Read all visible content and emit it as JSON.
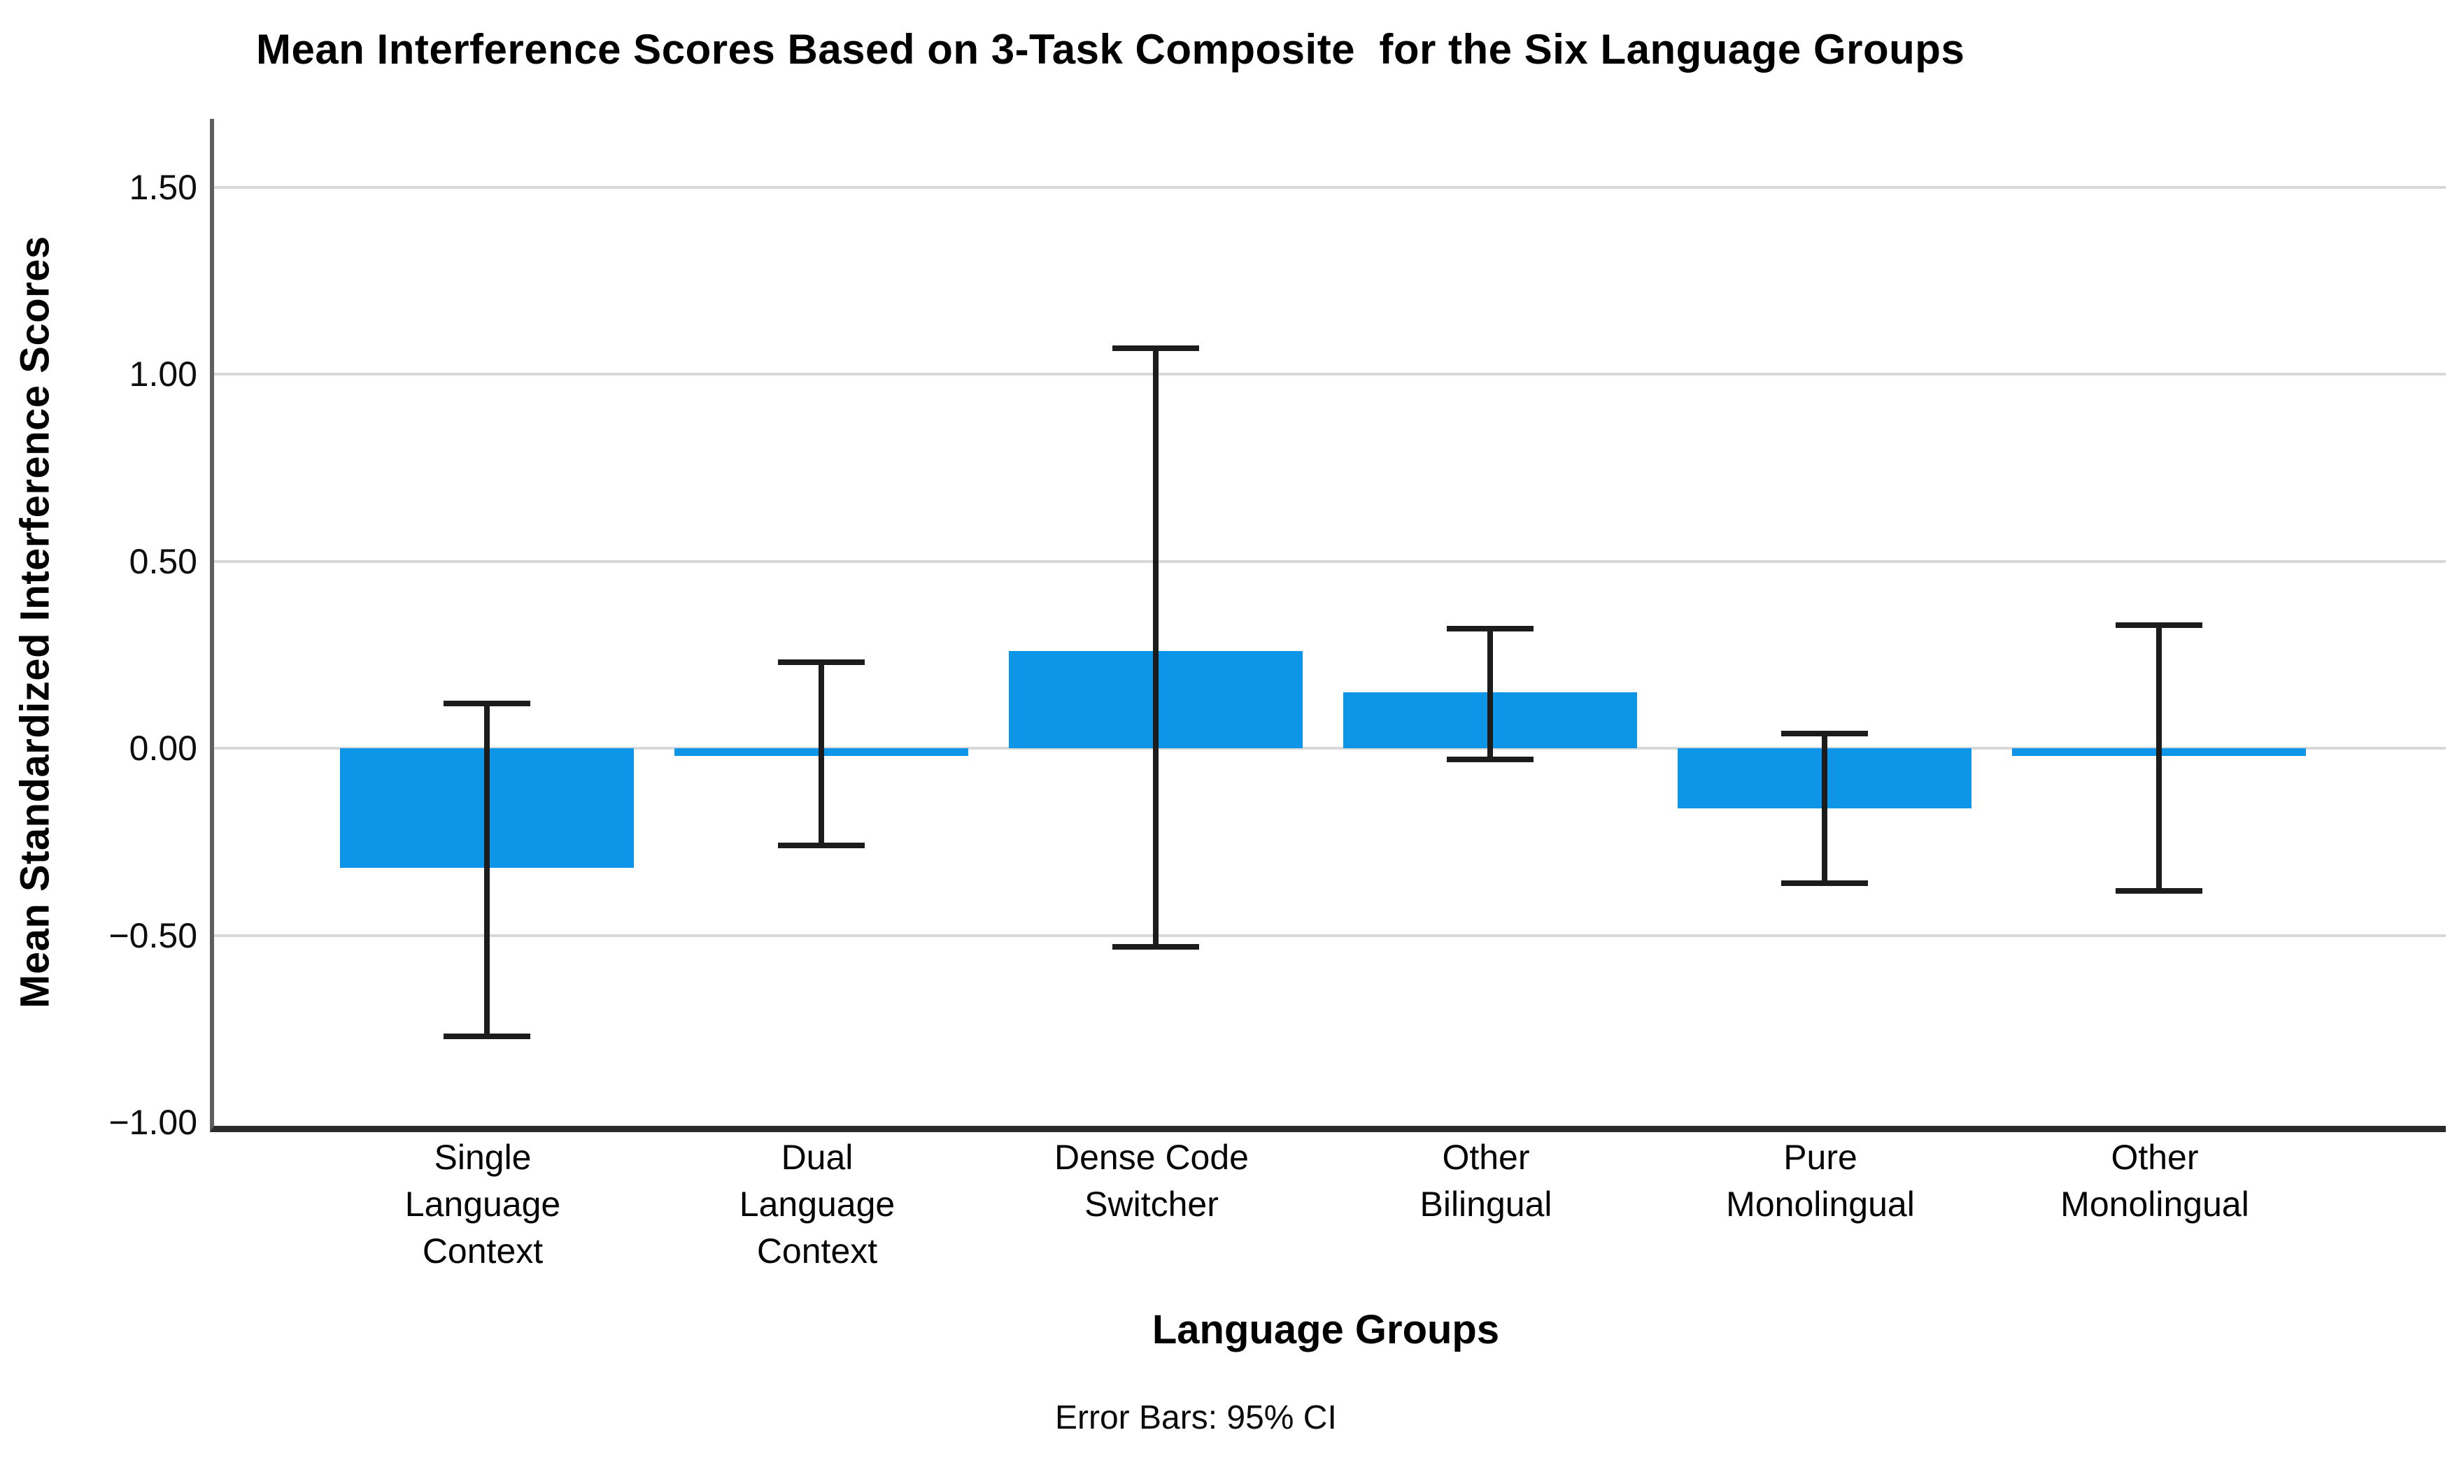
{
  "chart_data": {
    "type": "bar",
    "title": "Mean Interference Scores Based on 3-Task Composite  for the Six Language Groups",
    "xlabel": "Language Groups",
    "ylabel": "Mean Standardized Interference Scores",
    "footnote": "Error Bars: 95% CI",
    "error_bars": "95% CI",
    "categories": [
      "Single Language Context",
      "Dual Language Context",
      "Dense Code Switcher",
      "Other Bilingual",
      "Pure Monolingual",
      "Other Monolingual"
    ],
    "category_tick_lines": [
      [
        "Single",
        "Language",
        "Context"
      ],
      [
        "Dual",
        "Language",
        "Context"
      ],
      [
        "Dense Code",
        "Switcher"
      ],
      [
        "Other",
        "Bilingual"
      ],
      [
        "Pure",
        "Monolingual"
      ],
      [
        "Other",
        "Monolingual"
      ]
    ],
    "values": [
      -0.32,
      -0.02,
      0.26,
      0.15,
      -0.16,
      -0.02
    ],
    "ci_low": [
      -0.77,
      -0.26,
      -0.53,
      -0.03,
      -0.36,
      -0.38
    ],
    "ci_high": [
      0.12,
      0.23,
      1.07,
      0.32,
      0.04,
      0.33
    ],
    "y_tick_values": [
      1.5,
      1.0,
      0.5,
      0.0,
      -0.5,
      -1.0
    ],
    "y_tick_labels": [
      "1.50",
      "1.00",
      "0.50",
      "0.00",
      "−0.50",
      "−1.00"
    ],
    "ylim": [
      -1.0,
      1.5
    ],
    "grid": true,
    "legend": "none",
    "colors": {
      "bar_fill": "#0d95e8",
      "error_bar": "#1c1c1c",
      "gridline": "#d8d8d8",
      "axis_left": "#5f5f5f",
      "axis_bottom": "#2b2b2b",
      "text": "#000000",
      "background": "#ffffff"
    }
  }
}
